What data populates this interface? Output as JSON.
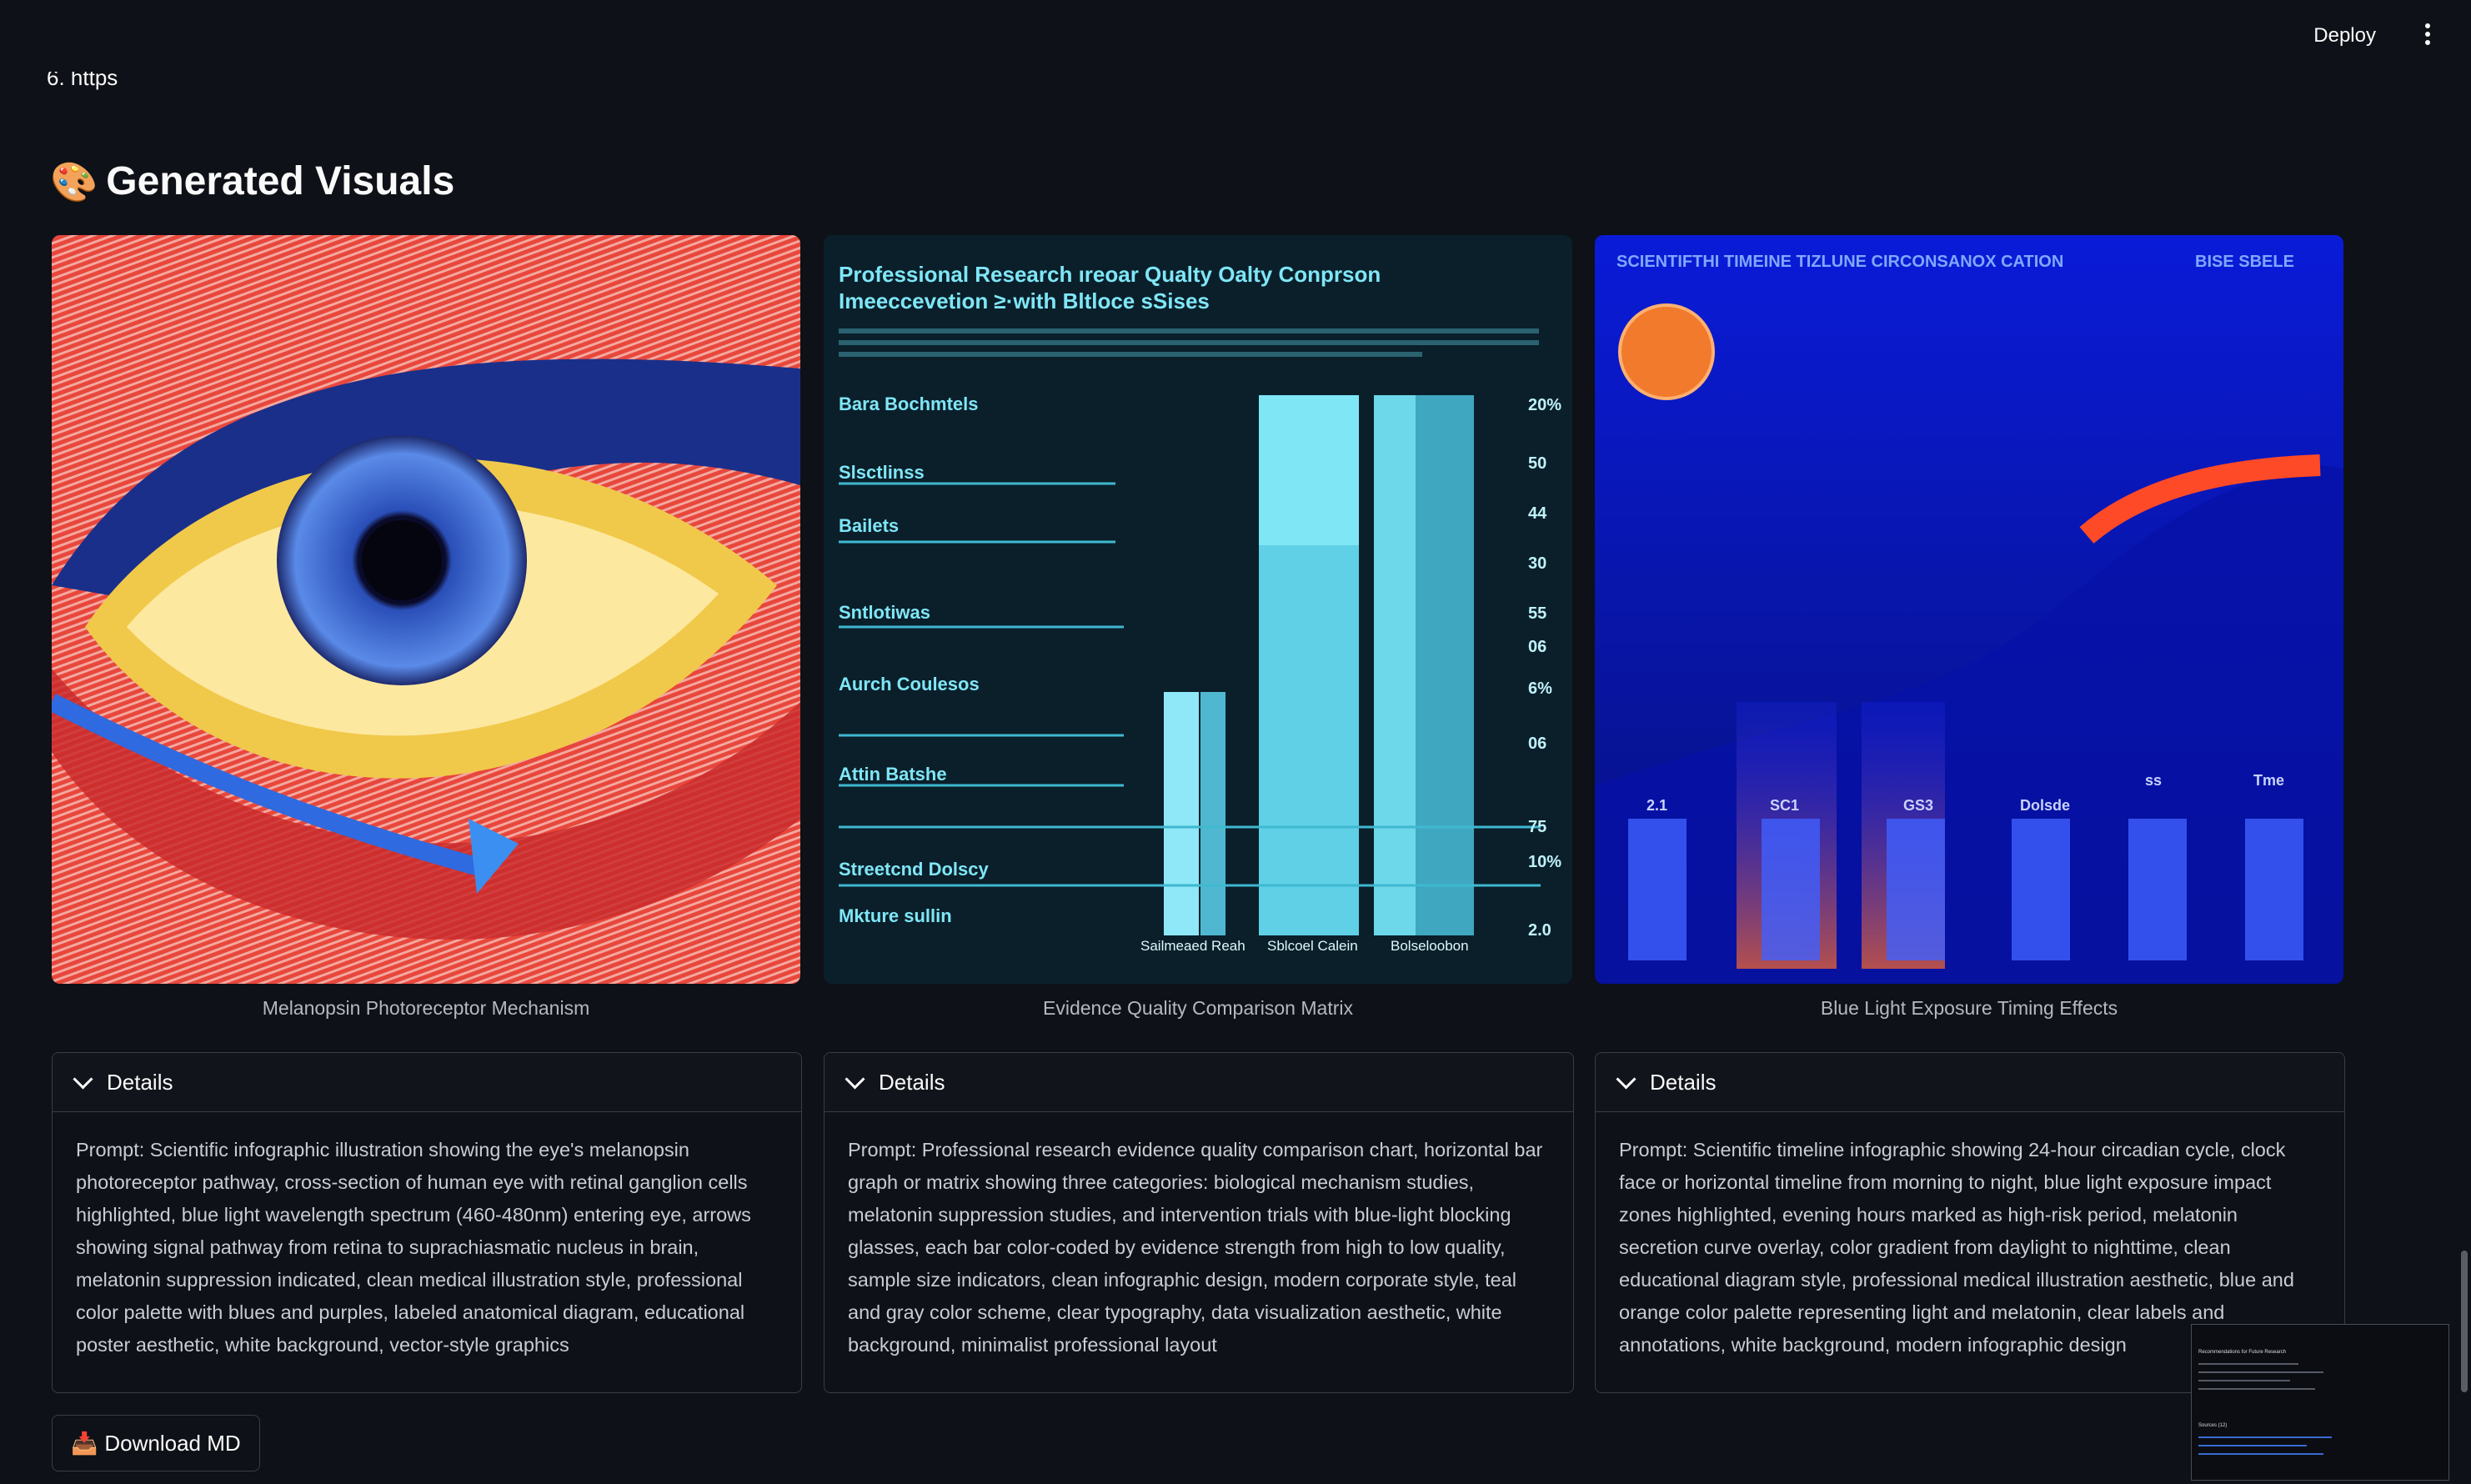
{
  "toolbar": {
    "deploy_label": "Deploy",
    "menu_icon": "kebab-menu-icon"
  },
  "truncated_line": "6.  https",
  "section": {
    "icon": "🎨",
    "title": "Generated Visuals"
  },
  "visuals": [
    {
      "caption": "Melanopsin Photoreceptor Mechanism",
      "expander_label": "Details",
      "prompt": "Prompt: Scientific infographic illustration showing the eye's melanopsin photoreceptor pathway, cross-section of human eye with retinal ganglion cells highlighted, blue light wavelength spectrum (460-480nm) entering eye, arrows showing signal pathway from retina to suprachiasmatic nucleus in brain, melatonin suppression indicated, clean medical illustration style, professional color palette with blues and purples, labeled anatomical diagram, educational poster aesthetic, white background, vector-style graphics"
    },
    {
      "caption": "Evidence Quality Comparison Matrix",
      "expander_label": "Details",
      "prompt": "Prompt: Professional research evidence quality comparison chart, horizontal bar graph or matrix showing three categories: biological mechanism studies, melatonin suppression studies, and intervention trials with blue-light blocking glasses, each bar color-coded by evidence strength from high to low quality, sample size indicators, clean infographic design, modern corporate style, teal and gray color scheme, clear typography, data visualization aesthetic, white background, minimalist professional layout",
      "image_text": {
        "title": "Professional Research ıreoar Qualty Oalty Conprson Imeeccevetion ≥·with Bltloce sSises",
        "labels": [
          "Bara Bochmtels",
          "Slsctlinss",
          "Bailets",
          "Sntlotiwas",
          "Aurch Coulesos",
          "Attin Batshe",
          "Streetcnd Dolscy",
          "Mkture sullin"
        ],
        "values": [
          "20%",
          "50",
          "44",
          "30",
          "55",
          "06",
          "6%",
          "06",
          "75",
          "10%",
          "2.0"
        ],
        "x_labels": [
          "Sailmeaed Reah",
          "Sblcoel Calein",
          "Bolseloobon"
        ]
      }
    },
    {
      "caption": "Blue Light Exposure Timing Effects",
      "expander_label": "Details",
      "prompt": "Prompt: Scientific timeline infographic showing 24-hour circadian cycle, clock face or horizontal timeline from morning to night, blue light exposure impact zones highlighted, evening hours marked as high-risk period, melatonin secretion curve overlay, color gradient from daylight to nighttime, clean educational diagram style, professional medical illustration aesthetic, blue and orange color palette representing light and melatonin, clear labels and annotations, white background, modern infographic design",
      "image_text": {
        "title": "SCIENTIFTHI TIMEINE TIZLUNE CIRCONSANOX CATION",
        "title_right": "BISE SBELE",
        "column_labels": [
          "2.1",
          "SC1",
          "GS3",
          "Dolsde",
          "ss",
          "Tme"
        ]
      }
    }
  ],
  "download": {
    "icon": "📥",
    "label": "Download MD"
  },
  "minimap": {
    "heading": "Recommendations for Future Research",
    "sub": "Sources (12)"
  },
  "colors": {
    "background": "#0e1117",
    "border": "#3a3d46",
    "text": "#fafafa",
    "muted": "#b5b8be"
  }
}
